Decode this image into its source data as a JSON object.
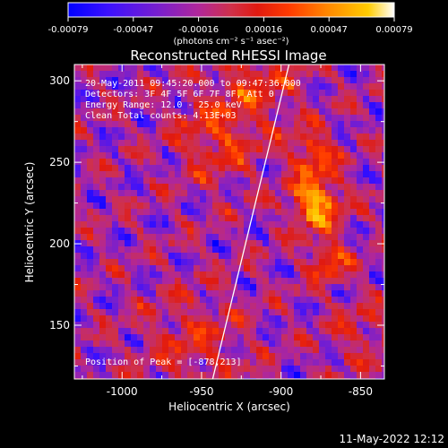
{
  "colorbar": {
    "ticks": [
      "-0.00079",
      "-0.00047",
      "-0.00016",
      "0.00016",
      "0.00047",
      "0.00079"
    ],
    "units": "(photons cm⁻² s⁻¹ asec⁻²)",
    "stops": [
      "#0000ff",
      "#3a10ff",
      "#7a1fcc",
      "#b0279a",
      "#d0304a",
      "#e01a10",
      "#ff3c00",
      "#ff8a00",
      "#ffcc00",
      "#ffffff"
    ]
  },
  "title": "Reconstructed RHESSI Image",
  "info": {
    "time": "20-May-2011 09:45:20.000 to 09:47:36.000",
    "detectors": "Detectors: 3F 4F 5F 6F 7F 8F, Att 0",
    "energy": "Energy Range: 12.0 - 25.0 keV",
    "clean": "Clean     Total counts: 4.13E+03",
    "peak": "Position of Peak = [-878,213]"
  },
  "footer": {
    "timestamp": "11-May-2022 12:12"
  },
  "chart_data": {
    "type": "heatmap",
    "title": "Reconstructed RHESSI Image",
    "xlabel": "Heliocentric X (arcsec)",
    "ylabel": "Heliocentric Y (arcsec)",
    "xlim": [
      -1030,
      -835
    ],
    "ylim": [
      117,
      310
    ],
    "x_ticks": [
      -1000,
      -950,
      -900,
      -850
    ],
    "y_ticks": [
      150,
      200,
      250,
      300
    ],
    "x_tick_labels": [
      "-1000",
      "-950",
      "-900",
      "-850"
    ],
    "y_tick_labels": [
      "150",
      "200",
      "250",
      "300"
    ],
    "peak": [
      -878,
      213
    ],
    "colorbar_range": [
      -0.00079,
      0.00079
    ],
    "limb_line": [
      [
        -943,
        117
      ],
      [
        -895,
        310
      ]
    ]
  }
}
